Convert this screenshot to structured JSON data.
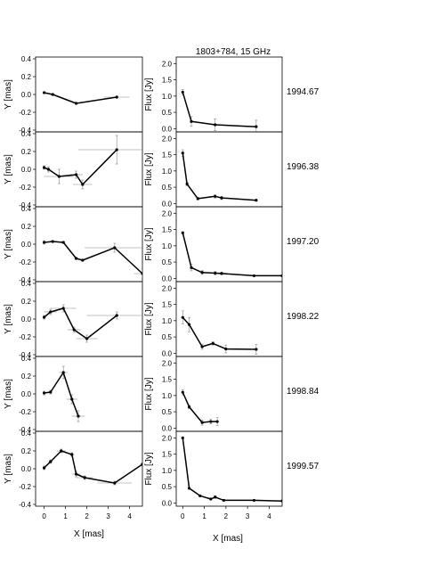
{
  "title": "1803+784, 15 GHz",
  "position_axis": {
    "ylabel": "Y [mas]",
    "xlabel": "X [mas]",
    "xticks": [
      "0",
      "1",
      "2",
      "3",
      "4"
    ],
    "yticks": [
      "-0.4",
      "-0.2",
      "0.0",
      "0.2",
      "0.4"
    ],
    "xlim": [
      -0.4,
      4.6
    ],
    "ylim": [
      -0.42,
      0.42
    ]
  },
  "flux_axis": {
    "ylabel": "Flux [Jy]",
    "xlabel": "X [mas]",
    "xticks": [
      "0",
      "1",
      "2",
      "3",
      "4"
    ],
    "yticks": [
      "0.0",
      "0.5",
      "1.0",
      "1.5",
      "2.0"
    ],
    "xlim": [
      -0.3,
      4.6
    ],
    "ylim": [
      -0.1,
      2.2
    ]
  },
  "chart_data": [
    {
      "type": "line",
      "epoch": "1994.67",
      "position": {
        "x": [
          0.0,
          0.4,
          1.5,
          3.4
        ],
        "y": [
          0.02,
          0.0,
          -0.1,
          -0.03
        ],
        "xerr": [
          0.0,
          0.1,
          0.05,
          0.6
        ],
        "yerr": [
          0.0,
          0.01,
          0.01,
          0.01
        ]
      },
      "flux": {
        "x": [
          0.0,
          0.4,
          1.5,
          3.4
        ],
        "y": [
          1.12,
          0.22,
          0.12,
          0.06
        ],
        "yerr": [
          0.08,
          0.15,
          0.18,
          0.2
        ]
      }
    },
    {
      "type": "line",
      "epoch": "1996.38",
      "position": {
        "x": [
          0.0,
          0.2,
          0.7,
          1.5,
          1.8,
          3.4
        ],
        "y": [
          0.02,
          0.0,
          -0.08,
          -0.06,
          -0.17,
          0.22
        ],
        "xerr": [
          0.05,
          0.1,
          0.7,
          0.3,
          0.45,
          1.8
        ],
        "yerr": [
          0.02,
          0.03,
          0.08,
          0.04,
          0.05,
          0.16
        ]
      },
      "flux": {
        "x": [
          0.0,
          0.2,
          0.7,
          1.5,
          1.8,
          3.4
        ],
        "y": [
          1.55,
          0.6,
          0.15,
          0.22,
          0.17,
          0.1
        ],
        "yerr": [
          0.1,
          0.06,
          0.04,
          0.05,
          0.05,
          0.03
        ]
      }
    },
    {
      "type": "line",
      "epoch": "1997.20",
      "position": {
        "x": [
          0.0,
          0.4,
          0.9,
          1.5,
          1.8,
          3.3,
          4.6
        ],
        "y": [
          0.02,
          0.03,
          0.02,
          -0.16,
          -0.18,
          -0.04,
          -0.33
        ],
        "xerr": [
          0.05,
          0.05,
          0.1,
          0.1,
          0.1,
          1.4,
          0.4
        ],
        "yerr": [
          0.02,
          0.01,
          0.01,
          0.01,
          0.01,
          0.05,
          0.05
        ]
      },
      "flux": {
        "x": [
          0.0,
          0.4,
          0.9,
          1.5,
          1.8,
          3.3,
          4.6
        ],
        "y": [
          1.4,
          0.33,
          0.18,
          0.16,
          0.15,
          0.08,
          0.08
        ],
        "yerr": [
          0.03,
          0.1,
          0.06,
          0.05,
          0.04,
          0.02,
          0.02
        ]
      }
    },
    {
      "type": "line",
      "epoch": "1998.22",
      "position": {
        "x": [
          0.0,
          0.3,
          0.9,
          1.4,
          2.0,
          3.4
        ],
        "y": [
          0.02,
          0.08,
          0.12,
          -0.12,
          -0.22,
          0.04
        ],
        "xerr": [
          0.05,
          0.3,
          0.6,
          0.3,
          0.5,
          1.4
        ],
        "yerr": [
          0.02,
          0.03,
          0.04,
          0.03,
          0.04,
          0.04
        ]
      },
      "flux": {
        "x": [
          0.0,
          0.3,
          0.9,
          1.4,
          2.0,
          3.4
        ],
        "y": [
          1.1,
          0.88,
          0.2,
          0.3,
          0.13,
          0.12
        ],
        "yerr": [
          0.2,
          0.22,
          0.08,
          0.05,
          0.12,
          0.15
        ]
      }
    },
    {
      "type": "line",
      "epoch": "1998.84",
      "position": {
        "x": [
          0.0,
          0.3,
          0.9,
          1.3,
          1.6
        ],
        "y": [
          0.01,
          0.02,
          0.24,
          -0.06,
          -0.25
        ],
        "xerr": [
          0.05,
          0.05,
          0.2,
          0.25,
          0.3
        ],
        "yerr": [
          0.02,
          0.02,
          0.07,
          0.05,
          0.06
        ]
      },
      "flux": {
        "x": [
          0.0,
          0.3,
          0.9,
          1.3,
          1.6
        ],
        "y": [
          1.1,
          0.65,
          0.17,
          0.2,
          0.2
        ],
        "yerr": [
          0.08,
          0.05,
          0.08,
          0.07,
          0.12
        ]
      }
    },
    {
      "type": "line",
      "epoch": "1999.57",
      "position": {
        "x": [
          0.0,
          0.3,
          0.8,
          1.3,
          1.5,
          1.9,
          3.3,
          4.6
        ],
        "y": [
          0.01,
          0.08,
          0.2,
          0.16,
          -0.06,
          -0.1,
          -0.16,
          0.05
        ],
        "xerr": [
          0.05,
          0.1,
          0.2,
          0.1,
          0.2,
          0.4,
          0.8,
          0.1
        ],
        "yerr": [
          0.02,
          0.02,
          0.02,
          0.02,
          0.03,
          0.02,
          0.02,
          0.02
        ]
      },
      "flux": {
        "x": [
          0.0,
          0.3,
          0.8,
          1.3,
          1.5,
          1.9,
          3.3,
          4.6
        ],
        "y": [
          2.0,
          0.45,
          0.22,
          0.12,
          0.18,
          0.08,
          0.08,
          0.06
        ],
        "yerr": [
          0.03,
          0.02,
          0.02,
          0.02,
          0.04,
          0.02,
          0.02,
          0.01
        ]
      }
    }
  ]
}
